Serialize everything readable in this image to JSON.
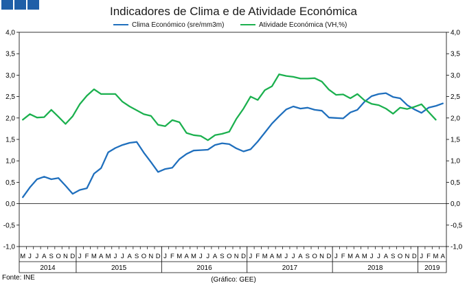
{
  "header": {
    "squares": [
      "sq1",
      "sq2",
      "sq3"
    ]
  },
  "chart_data": {
    "type": "line",
    "title": "Indicadores de Clima e de Atividade Económica",
    "y_ticks": [
      "4,0",
      "3,5",
      "3,0",
      "2,5",
      "2,0",
      "1,5",
      "1,0",
      "0,5",
      "0,0",
      "-0,5",
      "-1,0"
    ],
    "ylim": [
      -1.0,
      4.0
    ],
    "month_labels": [
      "M",
      "J",
      "J",
      "A",
      "S",
      "O",
      "N",
      "D",
      "J",
      "F",
      "M",
      "A",
      "M",
      "J",
      "J",
      "A",
      "S",
      "O",
      "N",
      "D",
      "J",
      "F",
      "M",
      "A",
      "M",
      "J",
      "J",
      "A",
      "S",
      "O",
      "N",
      "D",
      "J",
      "F",
      "M",
      "A",
      "M",
      "J",
      "J",
      "A",
      "S",
      "O",
      "N",
      "D",
      "J",
      "F",
      "M",
      "A",
      "M",
      "J",
      "J",
      "A",
      "S",
      "O",
      "N",
      "D",
      "J",
      "F",
      "M",
      "A"
    ],
    "years": [
      {
        "label": "2014",
        "start": 0,
        "count": 8
      },
      {
        "label": "2015",
        "start": 8,
        "count": 12
      },
      {
        "label": "2016",
        "start": 20,
        "count": 12
      },
      {
        "label": "2017",
        "start": 32,
        "count": 12
      },
      {
        "label": "2018",
        "start": 44,
        "count": 12
      },
      {
        "label": "2019",
        "start": 56,
        "count": 4
      }
    ],
    "series": [
      {
        "name": "Clima Económico (sre/mm3m)",
        "color": "#1f6fbd",
        "values": [
          0.15,
          0.38,
          0.57,
          0.63,
          0.57,
          0.6,
          0.42,
          0.23,
          0.32,
          0.36,
          0.7,
          0.83,
          1.2,
          1.3,
          1.37,
          1.42,
          1.44,
          1.19,
          0.97,
          0.74,
          0.81,
          0.84,
          1.04,
          1.16,
          1.24,
          1.25,
          1.26,
          1.37,
          1.41,
          1.39,
          1.29,
          1.22,
          1.27,
          1.45,
          1.66,
          1.87,
          2.04,
          2.2,
          2.27,
          2.22,
          2.24,
          2.19,
          2.17,
          2.01,
          2.0,
          1.99,
          2.13,
          2.19,
          2.38,
          2.51,
          2.56,
          2.58,
          2.49,
          2.46,
          2.3,
          2.2,
          2.12,
          2.24,
          2.28,
          2.34
        ]
      },
      {
        "name": "Atividade Económica (VH,%)",
        "color": "#1bb04e",
        "values": [
          1.96,
          2.09,
          2.01,
          2.02,
          2.19,
          2.03,
          1.86,
          2.04,
          2.32,
          2.52,
          2.67,
          2.56,
          2.56,
          2.56,
          2.38,
          2.27,
          2.18,
          2.09,
          2.05,
          1.84,
          1.81,
          1.95,
          1.9,
          1.65,
          1.6,
          1.58,
          1.48,
          1.6,
          1.63,
          1.68,
          1.98,
          2.22,
          2.5,
          2.42,
          2.65,
          2.74,
          3.02,
          2.98,
          2.96,
          2.92,
          2.92,
          2.93,
          2.85,
          2.66,
          2.54,
          2.55,
          2.46,
          2.56,
          2.41,
          2.33,
          2.3,
          2.22,
          2.1,
          2.24,
          2.21,
          2.26,
          2.32,
          2.14,
          1.96
        ]
      }
    ]
  },
  "source": "Fonte: INE",
  "credit": "(Gráfico: GEE)"
}
